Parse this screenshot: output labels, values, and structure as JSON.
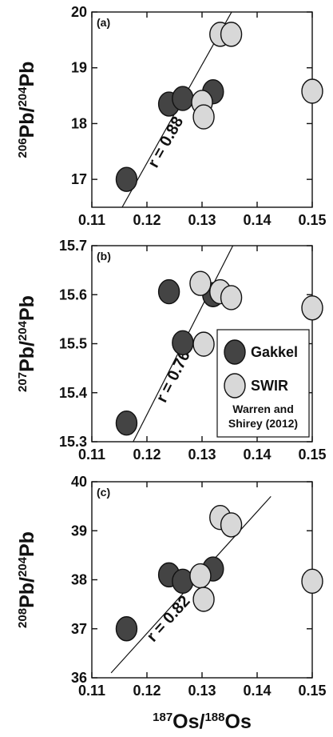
{
  "chart_data": [
    {
      "type": "scatter",
      "panel_label": "(a)",
      "ylabel": {
        "sup1": "206",
        "base1": "Pb/",
        "sup2": "204",
        "base2": "Pb"
      },
      "xlim": [
        0.11,
        0.15
      ],
      "ylim": [
        16.5,
        20
      ],
      "xticks": [
        "0.11",
        "0.12",
        "0.13",
        "0.14",
        "0.15"
      ],
      "yticks": [
        "17",
        "18",
        "19",
        "20"
      ],
      "yticks_values": [
        17,
        18,
        19,
        20
      ],
      "correlation_label": "r = 0.88",
      "series": [
        {
          "name": "Gakkel",
          "x": [
            0.1163,
            0.124,
            0.1265,
            0.132
          ],
          "y": [
            17.0,
            18.35,
            18.45,
            18.57
          ]
        },
        {
          "name": "SWIR",
          "x": [
            0.13,
            0.1303,
            0.1333,
            0.1353,
            0.15
          ],
          "y": [
            18.38,
            18.12,
            19.6,
            19.6,
            18.58
          ]
        }
      ],
      "regression": {
        "x": [
          0.1155,
          0.1365
        ],
        "y": [
          16.5,
          20.2
        ]
      }
    },
    {
      "type": "scatter",
      "panel_label": "(b)",
      "ylabel": {
        "sup1": "207",
        "base1": "Pb/",
        "sup2": "204",
        "base2": "Pb"
      },
      "xlim": [
        0.11,
        0.15
      ],
      "ylim": [
        15.3,
        15.7
      ],
      "xticks": [
        "0.11",
        "0.12",
        "0.13",
        "0.14",
        "0.15"
      ],
      "yticks": [
        "15.3",
        "15.4",
        "15.5",
        "15.6",
        "15.7"
      ],
      "yticks_values": [
        15.3,
        15.4,
        15.5,
        15.6,
        15.7
      ],
      "correlation_label": "r = 0.76",
      "series": [
        {
          "name": "Gakkel",
          "x": [
            0.1163,
            0.124,
            0.1265,
            0.132
          ],
          "y": [
            15.338,
            15.606,
            15.502,
            15.6
          ]
        },
        {
          "name": "SWIR",
          "x": [
            0.1297,
            0.1303,
            0.1333,
            0.1353,
            0.15
          ],
          "y": [
            15.623,
            15.499,
            15.606,
            15.594,
            15.573
          ]
        }
      ],
      "regression": {
        "x": [
          0.1175,
          0.1365
        ],
        "y": [
          15.3,
          15.72
        ]
      },
      "legend": {
        "entries": [
          "Gakkel",
          "SWIR"
        ],
        "reference": [
          "Warren and",
          "Shirey (2012)"
        ]
      }
    },
    {
      "type": "scatter",
      "panel_label": "(c)",
      "ylabel": {
        "sup1": "208",
        "base1": "Pb/",
        "sup2": "204",
        "base2": "Pb"
      },
      "xlim": [
        0.11,
        0.15
      ],
      "ylim": [
        36,
        40
      ],
      "xticks": [
        "0.11",
        "0.12",
        "0.13",
        "0.14",
        "0.15"
      ],
      "yticks": [
        "36",
        "37",
        "38",
        "39",
        "40"
      ],
      "yticks_values": [
        36,
        37,
        38,
        39,
        40
      ],
      "correlation_label": "r = 0.82",
      "series": [
        {
          "name": "Gakkel",
          "x": [
            0.1163,
            0.124,
            0.1265,
            0.132
          ],
          "y": [
            37.0,
            38.1,
            37.97,
            38.22
          ]
        },
        {
          "name": "SWIR",
          "x": [
            0.1297,
            0.1303,
            0.1333,
            0.1353,
            0.15
          ],
          "y": [
            38.08,
            37.6,
            39.27,
            39.12,
            37.97
          ]
        }
      ],
      "regression": {
        "x": [
          0.1135,
          0.1425
        ],
        "y": [
          36.1,
          39.7
        ]
      }
    }
  ],
  "xlabel": {
    "sup1": "187",
    "base1": "Os/",
    "sup2": "188",
    "base2": "Os"
  },
  "colors": {
    "Gakkel": "#444444",
    "SWIR": "#d8d8d8",
    "stroke": "#111111"
  }
}
